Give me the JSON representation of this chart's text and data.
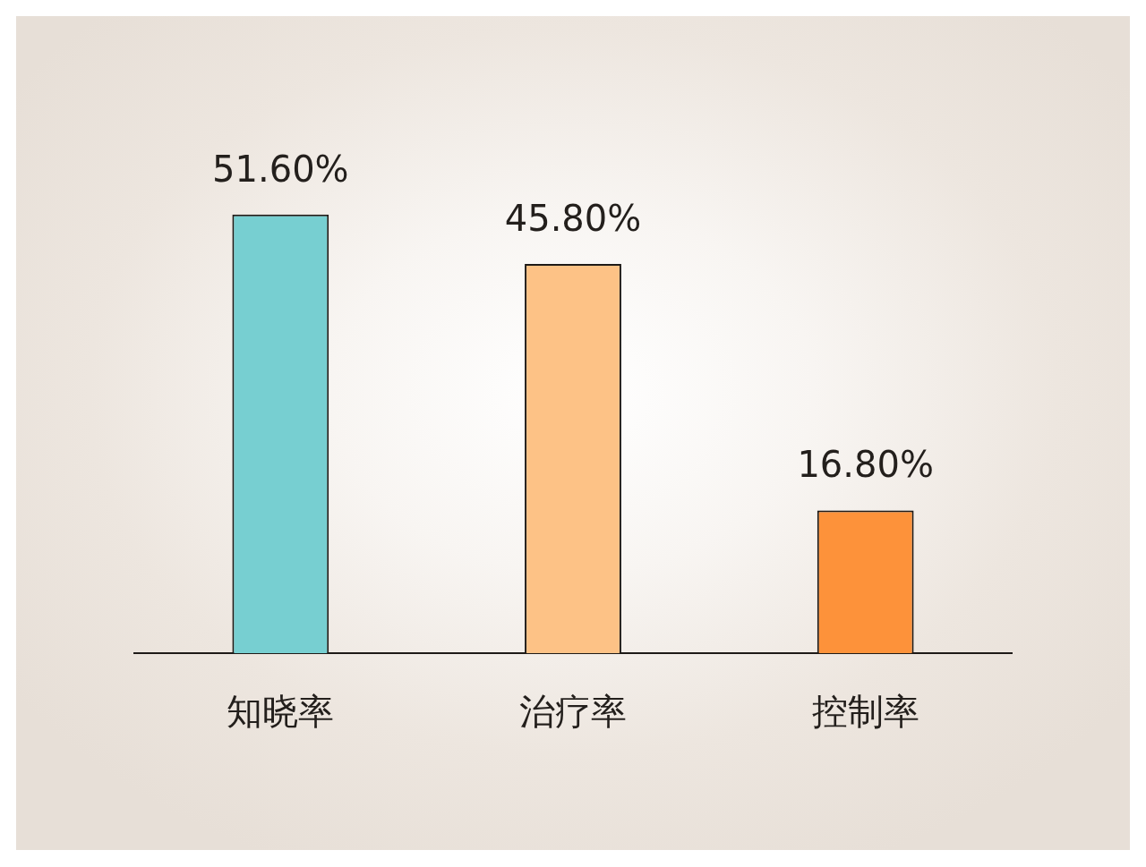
{
  "chart_data": {
    "type": "bar",
    "categories": [
      "知晓率",
      "治疗率",
      "控制率"
    ],
    "values": [
      51.6,
      45.8,
      16.8
    ],
    "colors": [
      "#77cfd1",
      "#fdc286",
      "#fd923a"
    ],
    "value_labels": [
      "51.60%",
      "45.80%",
      "16.80%"
    ]
  }
}
